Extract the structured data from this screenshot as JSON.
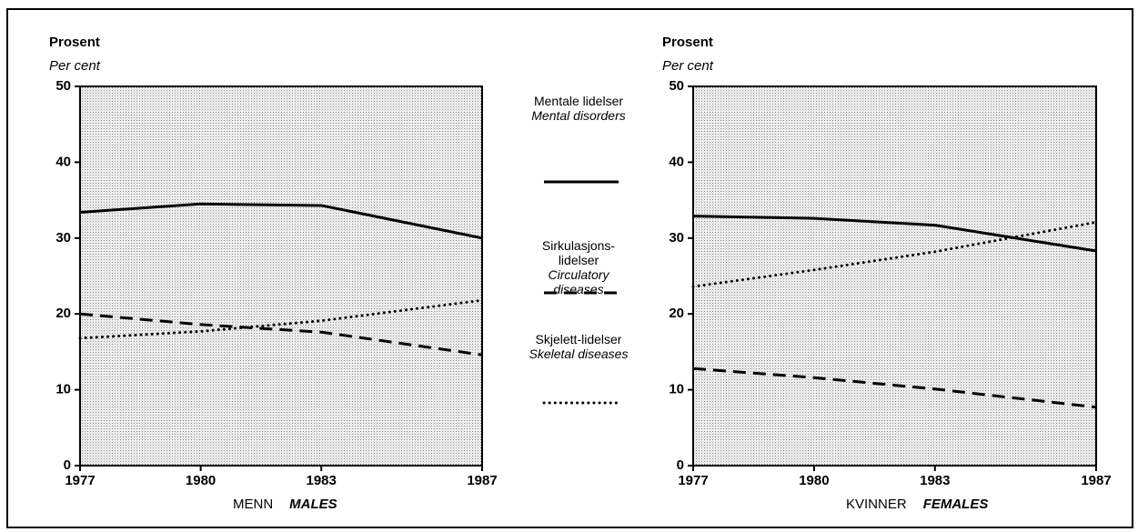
{
  "chart_data": [
    {
      "type": "line",
      "ylabel": "Prosent",
      "ylabel_en": "Per cent",
      "xlabel": "MENN",
      "xlabel_en": "MALES",
      "x": [
        1977,
        1980,
        1983,
        1987
      ],
      "xlim": [
        1977,
        1987
      ],
      "xticks": [
        1977,
        1980,
        1983,
        1987
      ],
      "ylim": [
        0,
        50
      ],
      "yticks": [
        0,
        10,
        20,
        30,
        40,
        50
      ],
      "series": [
        {
          "name": "Mentale lidelser",
          "name_en": "Mental disorders",
          "color": "#000000",
          "dash": "solid",
          "values": [
            33.4,
            34.5,
            34.3,
            30.0
          ]
        },
        {
          "name": "Sirkulasjons-lidelser",
          "name_en": "Circulatory diseases",
          "color": "#000000",
          "dash": "dashed",
          "values": [
            20.0,
            18.6,
            17.6,
            14.6
          ]
        },
        {
          "name": "Skjelett-lidelser",
          "name_en": "Skeletal diseases",
          "color": "#000000",
          "dash": "dotted",
          "values": [
            16.8,
            17.7,
            19.1,
            21.8
          ]
        }
      ]
    },
    {
      "type": "line",
      "ylabel": "Prosent",
      "ylabel_en": "Per cent",
      "xlabel": "KVINNER",
      "xlabel_en": "FEMALES",
      "x": [
        1977,
        1980,
        1983,
        1987
      ],
      "xlim": [
        1977,
        1987
      ],
      "xticks": [
        1977,
        1980,
        1983,
        1987
      ],
      "ylim": [
        0,
        50
      ],
      "yticks": [
        0,
        10,
        20,
        30,
        40,
        50
      ],
      "series": [
        {
          "color": "#000000",
          "dash": "solid",
          "values": [
            32.9,
            32.6,
            31.7,
            28.3
          ]
        },
        {
          "color": "#000000",
          "dash": "dashed",
          "values": [
            12.8,
            11.6,
            10.1,
            7.7
          ]
        },
        {
          "color": "#000000",
          "dash": "dotted",
          "values": [
            23.6,
            25.8,
            28.2,
            32.1
          ]
        }
      ]
    }
  ]
}
